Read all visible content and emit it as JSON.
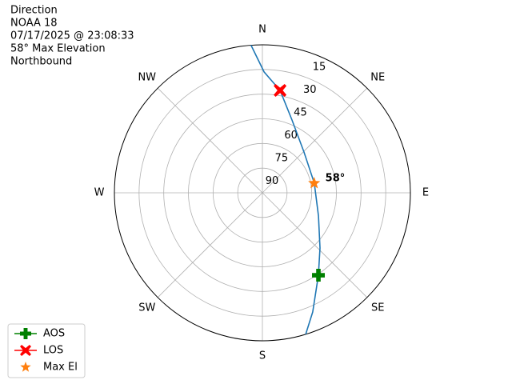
{
  "chart_data": {
    "type": "polar",
    "title_lines": [
      "Direction",
      "NOAA 18",
      "07/17/2025 @ 23:08:33",
      "58° Max Elevation",
      "Northbound"
    ],
    "rlim": [
      90,
      0
    ],
    "rticks": [
      15,
      30,
      45,
      60,
      75,
      90
    ],
    "theta_ticks": [
      {
        "value": 0,
        "label": "N"
      },
      {
        "value": 45,
        "label": "NE"
      },
      {
        "value": 90,
        "label": "E"
      },
      {
        "value": 135,
        "label": "SE"
      },
      {
        "value": 180,
        "label": "S"
      },
      {
        "value": 225,
        "label": "SW"
      },
      {
        "value": 270,
        "label": "W"
      },
      {
        "value": 315,
        "label": "NW"
      }
    ],
    "grid": true,
    "legend": "lower left",
    "track": {
      "color": "#1f77b4",
      "azimuth": [
        355.6,
        0.8,
        9.8,
        22.1,
        45.6,
        79.5,
        112.5,
        133.8,
        145.8,
        157.1,
        163
      ],
      "elevation": [
        0,
        16.5,
        26.8,
        42.2,
        54.6,
        57.9,
        53.1,
        41.5,
        29.4,
        11.3,
        0
      ]
    },
    "markers": [
      {
        "name": "AOS",
        "color": "#008000",
        "marker": "plus",
        "azimuth": [
          145.8
        ],
        "elevation": [
          29.4
        ]
      },
      {
        "name": "LOS",
        "color": "#ff0000",
        "marker": "x",
        "azimuth": [
          9.8
        ],
        "elevation": [
          26.8
        ]
      },
      {
        "name": "Max El",
        "color": "#ff7f0e",
        "marker": "star",
        "azimuth": [
          79.5
        ],
        "elevation": [
          58
        ],
        "value_labels": [
          "58°"
        ]
      }
    ]
  }
}
